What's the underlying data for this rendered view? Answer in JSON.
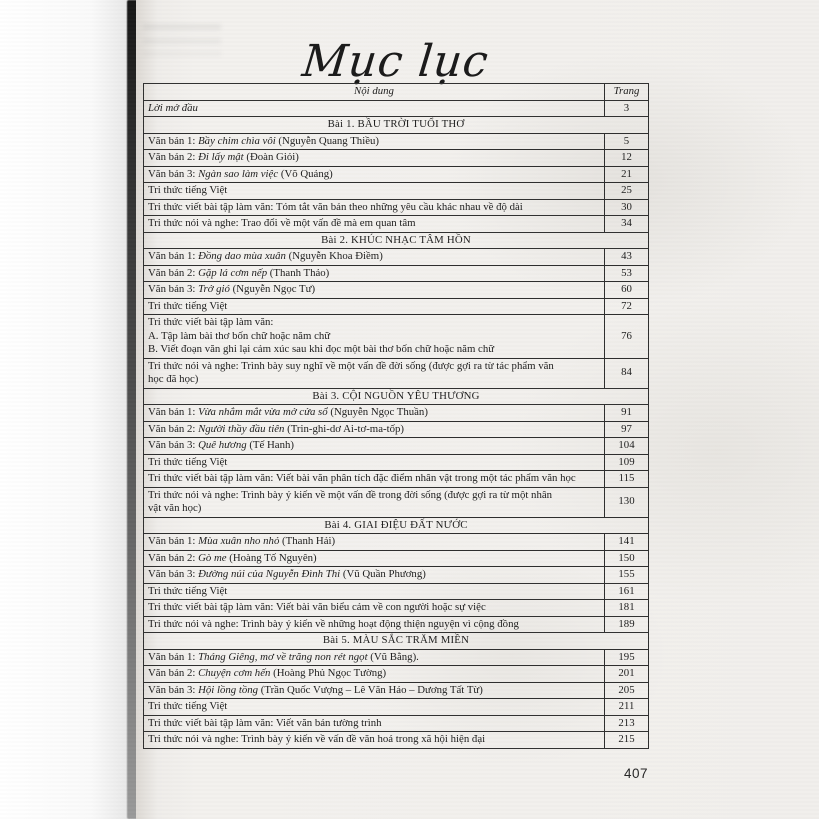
{
  "page_title": "Mục lục",
  "page_number": "407",
  "colors": {
    "ink": "#1d1d1d",
    "table_border": "#2f2f2f",
    "paper": "#f1efec",
    "spine": "#3c3c3c"
  },
  "table": {
    "headers": {
      "content": "Nội dung",
      "page": "Trang"
    },
    "rows": [
      {
        "type": "item",
        "page": "3",
        "lines": [
          [
            {
              "t": "Lời mở đầu",
              "i": true
            }
          ]
        ]
      },
      {
        "type": "section",
        "label": "Bài 1. BẦU TRỜI TUỔI THƠ"
      },
      {
        "type": "item",
        "page": "5",
        "lines": [
          [
            {
              "t": "Văn bản 1: "
            },
            {
              "t": "Bầy chim chìa vôi",
              "i": true
            },
            {
              "t": " (Nguyễn Quang Thiều)"
            }
          ]
        ]
      },
      {
        "type": "item",
        "page": "12",
        "lines": [
          [
            {
              "t": "Văn bản 2: "
            },
            {
              "t": "Đi lấy mật",
              "i": true
            },
            {
              "t": " (Đoàn Giỏi)"
            }
          ]
        ]
      },
      {
        "type": "item",
        "page": "21",
        "lines": [
          [
            {
              "t": "Văn bản 3: "
            },
            {
              "t": "Ngàn sao làm việc",
              "i": true
            },
            {
              "t": " (Võ Quảng)"
            }
          ]
        ]
      },
      {
        "type": "item",
        "page": "25",
        "lines": [
          [
            {
              "t": "Tri thức tiếng Việt"
            }
          ]
        ]
      },
      {
        "type": "item",
        "page": "30",
        "lines": [
          [
            {
              "t": "Tri thức viết bài tập làm văn: Tóm tắt văn bản theo những yêu cầu khác nhau về độ dài"
            }
          ]
        ]
      },
      {
        "type": "item",
        "page": "34",
        "lines": [
          [
            {
              "t": "Tri thức nói và nghe: Trao đổi về một vấn đề mà em quan tâm"
            }
          ]
        ]
      },
      {
        "type": "section",
        "label": "Bài 2. KHÚC NHẠC TÂM HỒN"
      },
      {
        "type": "item",
        "page": "43",
        "lines": [
          [
            {
              "t": "Văn bản 1: "
            },
            {
              "t": "Đồng dao mùa xuân",
              "i": true
            },
            {
              "t": " (Nguyễn Khoa Điềm)"
            }
          ]
        ]
      },
      {
        "type": "item",
        "page": "53",
        "lines": [
          [
            {
              "t": "Văn bản 2: "
            },
            {
              "t": "Gặp lá cơm nếp",
              "i": true
            },
            {
              "t": " (Thanh Thảo)"
            }
          ]
        ]
      },
      {
        "type": "item",
        "page": "60",
        "lines": [
          [
            {
              "t": "Văn bản 3: "
            },
            {
              "t": "Trở gió",
              "i": true
            },
            {
              "t": " (Nguyễn Ngọc Tư)"
            }
          ]
        ]
      },
      {
        "type": "item",
        "page": "72",
        "lines": [
          [
            {
              "t": "Tri thức tiếng Việt"
            }
          ]
        ]
      },
      {
        "type": "item",
        "page": "76",
        "lines": [
          [
            {
              "t": "Tri thức viết bài tập làm văn:"
            }
          ],
          [
            {
              "t": "A. Tập làm bài thơ bốn chữ hoặc năm chữ"
            }
          ],
          [
            {
              "t": "B. Viết đoạn văn ghi lại cảm xúc sau khi đọc một bài thơ bốn chữ hoặc năm chữ"
            }
          ]
        ]
      },
      {
        "type": "item",
        "page": "84",
        "lines": [
          [
            {
              "t": "Tri thức nói và nghe: Trình bày suy nghĩ về một vấn đề đời sống (được gợi ra từ tác phẩm văn"
            }
          ],
          [
            {
              "t": "học đã học)"
            }
          ]
        ]
      },
      {
        "type": "section",
        "label": "Bài 3. CỘI NGUỒN YÊU THƯƠNG"
      },
      {
        "type": "item",
        "page": "91",
        "lines": [
          [
            {
              "t": "Văn bản 1: "
            },
            {
              "t": "Vừa nhắm mắt vừa mở cửa sổ",
              "i": true
            },
            {
              "t": " (Nguyễn Ngọc Thuần)"
            }
          ]
        ]
      },
      {
        "type": "item",
        "page": "97",
        "lines": [
          [
            {
              "t": "Văn bản 2: "
            },
            {
              "t": "Người thầy đầu tiên",
              "i": true
            },
            {
              "t": " (Trin-ghi-dơ Ai-tơ-ma-tốp)"
            }
          ]
        ]
      },
      {
        "type": "item",
        "page": "104",
        "lines": [
          [
            {
              "t": "Văn bản 3: "
            },
            {
              "t": "Quê hương",
              "i": true
            },
            {
              "t": " (Tế Hanh)"
            }
          ]
        ]
      },
      {
        "type": "item",
        "page": "109",
        "lines": [
          [
            {
              "t": "Tri thức tiếng Việt"
            }
          ]
        ]
      },
      {
        "type": "item",
        "page": "115",
        "lines": [
          [
            {
              "t": "Tri thức viết bài tập làm văn: Viết bài văn phân tích đặc điểm nhân vật trong một tác phẩm văn học"
            }
          ]
        ]
      },
      {
        "type": "item",
        "page": "130",
        "lines": [
          [
            {
              "t": "Tri thức nói và nghe: Trình bày ý kiến về một vấn đề trong đời sống (được gợi ra từ một nhân"
            }
          ],
          [
            {
              "t": "vật văn học)"
            }
          ]
        ]
      },
      {
        "type": "section",
        "label": "Bài 4. GIAI ĐIỆU ĐẤT NƯỚC"
      },
      {
        "type": "item",
        "page": "141",
        "lines": [
          [
            {
              "t": "Văn bản 1: "
            },
            {
              "t": "Mùa xuân nho nhỏ",
              "i": true
            },
            {
              "t": " (Thanh Hải)"
            }
          ]
        ]
      },
      {
        "type": "item",
        "page": "150",
        "lines": [
          [
            {
              "t": "Văn bản 2: "
            },
            {
              "t": "Gò me",
              "i": true
            },
            {
              "t": " (Hoàng Tố Nguyên)"
            }
          ]
        ]
      },
      {
        "type": "item",
        "page": "155",
        "lines": [
          [
            {
              "t": "Văn bản 3: "
            },
            {
              "t": "Đường núi của Nguyễn Đình Thi",
              "i": true
            },
            {
              "t": " (Vũ Quần Phương)"
            }
          ]
        ]
      },
      {
        "type": "item",
        "page": "161",
        "lines": [
          [
            {
              "t": "Tri thức tiếng Việt"
            }
          ]
        ]
      },
      {
        "type": "item",
        "page": "181",
        "lines": [
          [
            {
              "t": "Tri thức viết bài tập làm văn: Viết bài văn biểu cảm về con người hoặc sự việc"
            }
          ]
        ]
      },
      {
        "type": "item",
        "page": "189",
        "lines": [
          [
            {
              "t": "Tri thức nói và nghe: Trình bày ý kiến về những hoạt động thiện nguyện vì cộng đồng"
            }
          ]
        ]
      },
      {
        "type": "section",
        "label": "Bài 5. MÀU SẮC TRĂM MIỀN"
      },
      {
        "type": "item",
        "page": "195",
        "lines": [
          [
            {
              "t": "Văn bản 1: "
            },
            {
              "t": "Tháng Giêng, mơ về trăng non rét ngọt",
              "i": true
            },
            {
              "t": " (Vũ Bằng)."
            }
          ]
        ]
      },
      {
        "type": "item",
        "page": "201",
        "lines": [
          [
            {
              "t": "Văn bản 2: "
            },
            {
              "t": "Chuyện cơm hến",
              "i": true
            },
            {
              "t": " (Hoàng Phủ Ngọc Tường)"
            }
          ]
        ]
      },
      {
        "type": "item",
        "page": "205",
        "lines": [
          [
            {
              "t": "Văn bản 3: "
            },
            {
              "t": "Hội lồng tồng",
              "i": true
            },
            {
              "t": " (Trần Quốc Vượng – Lê Văn Hảo – Dương Tất Từ)"
            }
          ]
        ]
      },
      {
        "type": "item",
        "page": "211",
        "lines": [
          [
            {
              "t": "Tri thức tiếng Việt"
            }
          ]
        ]
      },
      {
        "type": "item",
        "page": "213",
        "lines": [
          [
            {
              "t": "Tri thức viết bài tập làm văn: Viết văn bản tường trình"
            }
          ]
        ]
      },
      {
        "type": "item",
        "page": "215",
        "lines": [
          [
            {
              "t": "Tri thức nói và nghe: Trình bày ý kiến về vấn đề văn hoá trong xã hội hiện đại"
            }
          ]
        ]
      }
    ]
  }
}
